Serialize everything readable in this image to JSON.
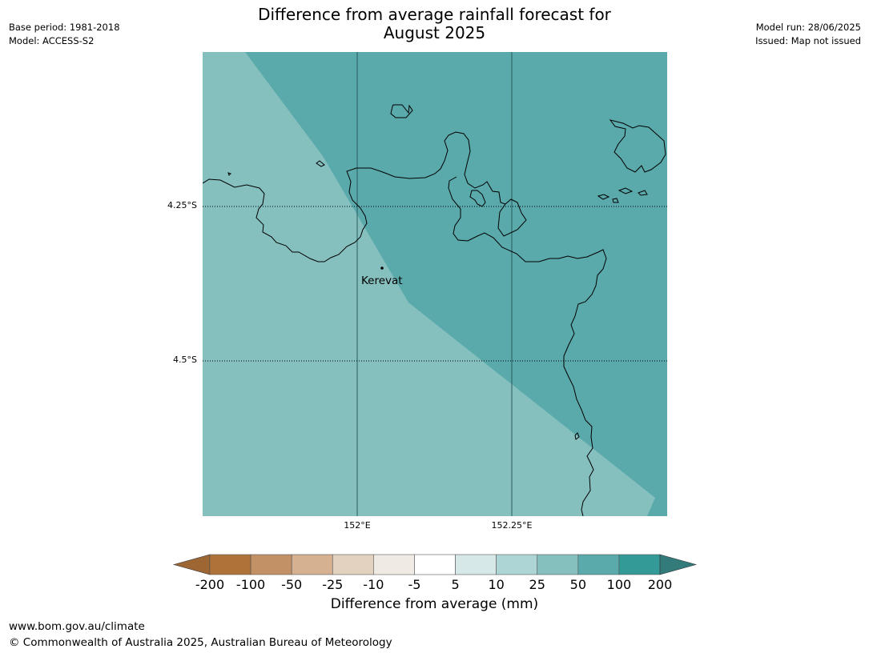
{
  "title_line1": "Difference from average rainfall forecast for",
  "title_line2": "August 2025",
  "meta_left": {
    "base_period": "Base period: 1981-2018",
    "model": "Model: ACCESS-S2"
  },
  "meta_right": {
    "model_run": "Model run: 28/06/2025",
    "issued": "Issued: Map not issued"
  },
  "map": {
    "lat_labels": [
      "4.25°S",
      "4.5°S"
    ],
    "lon_labels": [
      "152°E",
      "152.25°E"
    ],
    "place": "Kerevat",
    "colors": {
      "band_50_100": "#5aa9ab",
      "band_25_50": "#85c0bf",
      "coast": "#000000"
    }
  },
  "colorbar": {
    "ticks": [
      "-200",
      "-100",
      "-50",
      "-25",
      "-10",
      "-5",
      "5",
      "10",
      "25",
      "50",
      "100",
      "200"
    ],
    "colors": [
      "#9e6633",
      "#af733a",
      "#c29166",
      "#d5b091",
      "#e3d2c0",
      "#f0eae4",
      "#ffffff",
      "#d6e9e8",
      "#add5d5",
      "#85c0bf",
      "#5aa9ab",
      "#339a98",
      "#337a7a"
    ],
    "label": "Difference from average (mm)"
  },
  "footer": {
    "url": "www.bom.gov.au/climate",
    "copyright": "© Commonwealth of Australia 2025, Australian Bureau of Meteorology"
  }
}
